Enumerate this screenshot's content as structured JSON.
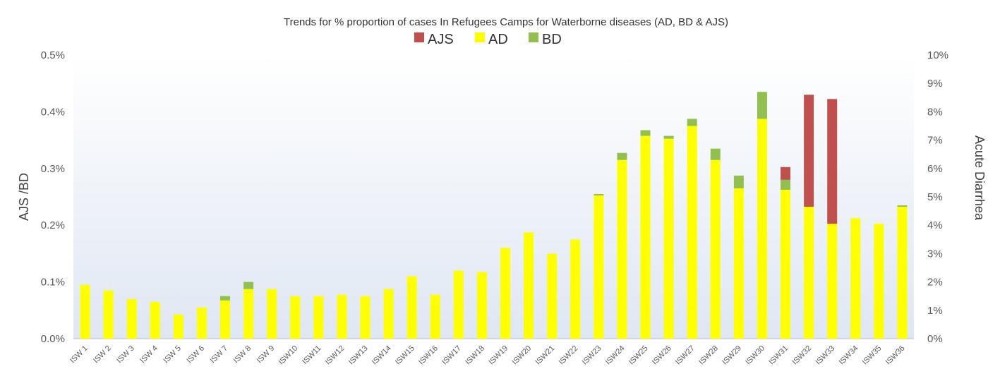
{
  "chart_data": {
    "type": "bar",
    "stacked": true,
    "title": "Trends for % proportion of cases In Refugees Camps for Waterborne diseases (AD, BD & AJS)",
    "ylabel_left": "AJS /BD",
    "ylabel_right": "Acute Diarrhea",
    "yticks_left": [
      "0.0%",
      "0.1%",
      "0.2%",
      "0.3%",
      "0.4%",
      "0.5%"
    ],
    "yticks_right": [
      "0%",
      "1%",
      "2%",
      "3%",
      "4%",
      "5%",
      "6%",
      "7%",
      "8%",
      "9%",
      "10%"
    ],
    "ylim_left": [
      0,
      0.5
    ],
    "ylim_right": [
      0,
      10
    ],
    "grid": false,
    "legend_position": "top",
    "legend": [
      "AJS",
      "AD",
      "BD"
    ],
    "categories": [
      "ISW 1",
      "ISW 2",
      "ISW 3",
      "ISW 4",
      "ISW 5",
      "ISW 6",
      "ISW 7",
      "ISW 8",
      "ISW 9",
      "ISW10",
      "ISW11",
      "ISW12",
      "ISW13",
      "ISW14",
      "ISW15",
      "ISW16",
      "ISW17",
      "ISW18",
      "ISW19",
      "ISW20",
      "ISW21",
      "ISW22",
      "ISW23",
      "ISW24",
      "ISW25",
      "ISW26",
      "ISW27",
      "ISW28",
      "ISW29",
      "ISW30",
      "ISW31",
      "ISW32",
      "ISW33",
      "ISW34",
      "ISW35",
      "ISW36"
    ],
    "series": [
      {
        "name": "AD",
        "color": "#ffff00",
        "axis": "right",
        "values": [
          1.9,
          1.7,
          1.4,
          1.3,
          0.85,
          1.1,
          1.35,
          1.75,
          1.75,
          1.5,
          1.5,
          1.55,
          1.5,
          1.75,
          2.2,
          1.55,
          2.4,
          2.35,
          3.2,
          3.75,
          3.0,
          3.5,
          5.05,
          6.3,
          7.15,
          7.05,
          7.5,
          6.3,
          5.3,
          7.75,
          5.25,
          4.65,
          4.05,
          4.25,
          4.05,
          4.65
        ]
      },
      {
        "name": "BD",
        "color": "#92c050",
        "axis": "right",
        "values": [
          0,
          0,
          0,
          0,
          0,
          0,
          0.15,
          0.25,
          0,
          0,
          0,
          0,
          0,
          0,
          0,
          0,
          0,
          0,
          0,
          0,
          0,
          0,
          0.05,
          0.25,
          0.2,
          0.1,
          0.25,
          0.4,
          0.45,
          0.95,
          0.35,
          0,
          0,
          0,
          0,
          0.05
        ]
      },
      {
        "name": "AJS",
        "color": "#c0504d",
        "axis": "right",
        "values": [
          0,
          0,
          0,
          0,
          0,
          0,
          0,
          0,
          0,
          0,
          0,
          0,
          0,
          0,
          0,
          0,
          0,
          0,
          0,
          0,
          0,
          0,
          0,
          0,
          0,
          0,
          0,
          0,
          0,
          0,
          0.45,
          3.95,
          4.4,
          0,
          0,
          0
        ]
      }
    ]
  }
}
